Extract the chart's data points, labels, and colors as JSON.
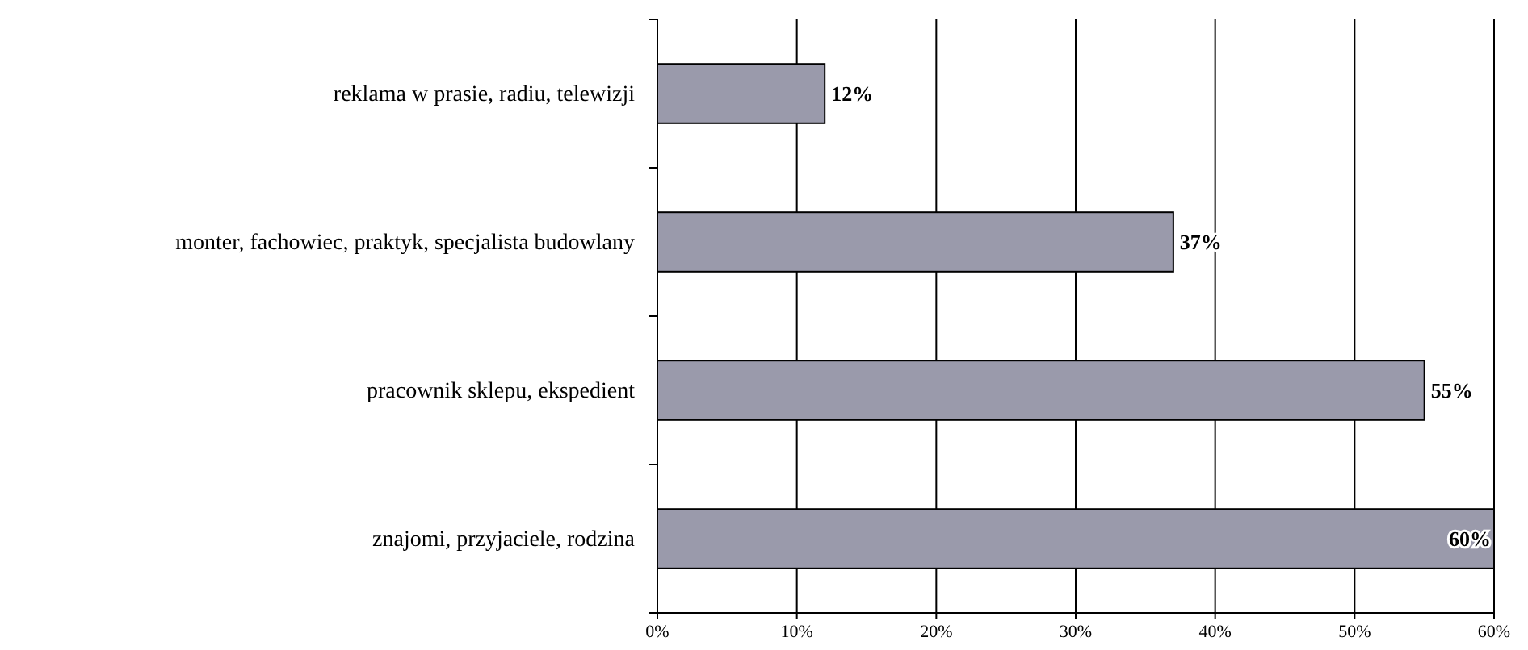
{
  "chart_data": {
    "type": "bar",
    "orientation": "horizontal",
    "categories": [
      "reklama w prasie, radiu, telewizji",
      "monter, fachowiec, praktyk, specjalista budowlany",
      "pracownik sklepu, ekspedient",
      "znajomi, przyjaciele, rodzina"
    ],
    "values": [
      12,
      37,
      55,
      60
    ],
    "value_labels": [
      "12%",
      "37%",
      "55%",
      "60%"
    ],
    "color": "#9a9aab",
    "xlim": [
      0,
      60
    ],
    "xticks": [
      {
        "value": 0,
        "label": "0%"
      },
      {
        "value": 10,
        "label": "10%"
      },
      {
        "value": 20,
        "label": "20%"
      },
      {
        "value": 30,
        "label": "30%"
      },
      {
        "value": 40,
        "label": "40%"
      },
      {
        "value": 50,
        "label": "50%"
      },
      {
        "value": 60,
        "label": "60%"
      }
    ],
    "grid": "x"
  }
}
